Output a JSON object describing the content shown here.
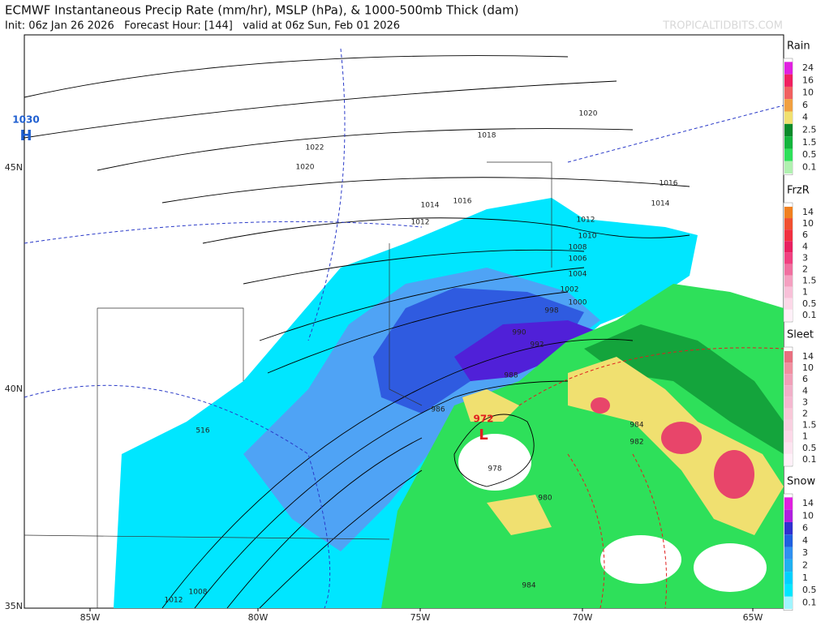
{
  "header": {
    "title": "ECMWF Instantaneous Precip Rate (mm/hr), MSLP (hPa), & 1000-500mb Thick (dam)",
    "subtitle": "Init: 06z Jan 26 2026   Forecast Hour: [144]   valid at 06z Sun, Feb 01 2026",
    "watermark": "TROPICALTIDBITS.COM"
  },
  "map": {
    "lon_labels": [
      "85W",
      "80W",
      "75W",
      "70W",
      "65W"
    ],
    "lat_labels": [
      "45N",
      "40N",
      "35N"
    ],
    "pressure_centers": [
      {
        "value": 1030,
        "symbol": "H"
      },
      {
        "value": 972,
        "symbol": "L"
      }
    ],
    "isobar_labels": [
      1022,
      1020,
      1018,
      1020,
      1016,
      1014,
      1016,
      1014,
      1012,
      1012,
      1010,
      1008,
      1006,
      1004,
      1002,
      1000,
      998,
      992,
      990,
      988,
      986,
      984,
      982,
      978,
      980,
      984,
      516,
      1012,
      1008
    ]
  },
  "legend": [
    {
      "title": "Rain",
      "labels": [
        24,
        16,
        10,
        6,
        4,
        2.5,
        1.5,
        0.5,
        0.1
      ]
    },
    {
      "title": "FrzR",
      "labels": [
        14,
        10,
        6,
        4,
        3,
        2,
        1.5,
        1,
        0.5,
        0.1
      ]
    },
    {
      "title": "Sleet",
      "labels": [
        14,
        10,
        6,
        4,
        3,
        2,
        1.5,
        1,
        0.5,
        0.1
      ]
    },
    {
      "title": "Snow",
      "labels": [
        14,
        10,
        6,
        4,
        3,
        2,
        1,
        0.5,
        0.1
      ]
    }
  ]
}
